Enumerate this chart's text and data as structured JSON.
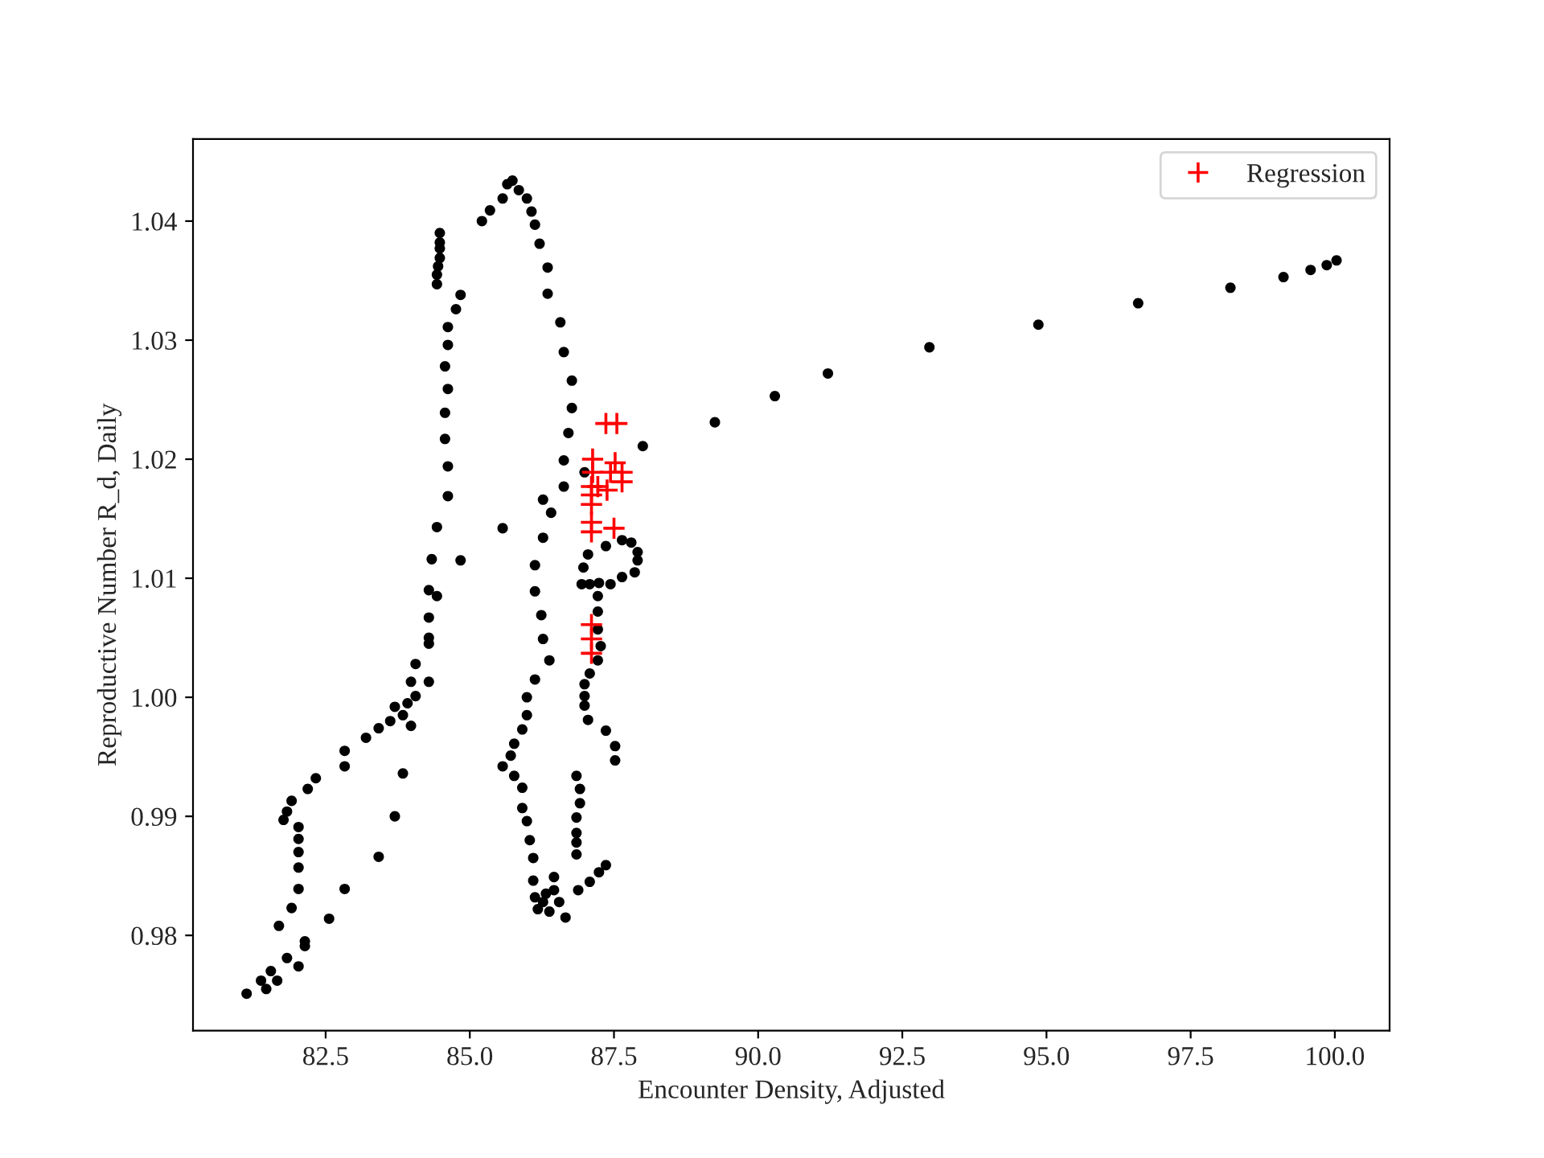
{
  "chart_data": {
    "type": "scatter",
    "xlabel": "Encounter Density, Adjusted",
    "ylabel": "Reproductive Number R_d, Daily",
    "xlim": [
      80.2,
      100.95
    ],
    "ylim": [
      0.972,
      1.0469
    ],
    "xticks": [
      82.5,
      {
        "value": 85,
        "label": "85.0"
      },
      87.5,
      {
        "value": 90,
        "label": "90.0"
      },
      92.5,
      {
        "value": 95,
        "label": "95.0"
      },
      97.5,
      {
        "value": 100,
        "label": "100.0"
      }
    ],
    "yticks": [
      0.98,
      0.99,
      {
        "value": 1.0,
        "label": "1.00"
      },
      1.01,
      1.02,
      1.03,
      1.04
    ],
    "grid": false,
    "legend": "top right",
    "series": [
      {
        "color": "#000000",
        "marker": "circle",
        "x": [
          84.48,
          84.48,
          84.48,
          84.48,
          84.45,
          84.43,
          84.43,
          84.84,
          84.76,
          84.62,
          84.62,
          84.57,
          84.62,
          84.57,
          84.57,
          84.62,
          84.62,
          84.43,
          84.34,
          84.84,
          84.29,
          84.43,
          84.29,
          84.29,
          84.29,
          84.06,
          83.98,
          84.29,
          84.06,
          83.92,
          83.7,
          83.84,
          83.62,
          83.98,
          83.42,
          83.2,
          82.83,
          82.83,
          83.84,
          82.33,
          82.19,
          81.91,
          81.83,
          81.77,
          82.03,
          82.03,
          82.03,
          83.7,
          82.03,
          83.42,
          82.83,
          82.03,
          81.91,
          82.56,
          81.69,
          82.14,
          82.14,
          81.83,
          82.03,
          81.55,
          81.38,
          81.66,
          81.47,
          81.13,
          85.21,
          85.35,
          85.57,
          85.65,
          85.74,
          85.85,
          85.99,
          86.07,
          86.13,
          86.21,
          86.35,
          86.35,
          86.57,
          86.63,
          86.77,
          86.77,
          86.71,
          86.63,
          86.63,
          86.27,
          86.41,
          85.57,
          86.27,
          86.13,
          86.13,
          86.24,
          86.27,
          86.38,
          86.13,
          85.99,
          85.99,
          85.91,
          85.77,
          85.71,
          85.57,
          85.77,
          85.91,
          85.91,
          85.99,
          86.04,
          86.1,
          86.1,
          86.13,
          86.18,
          86.46,
          86.46,
          86.55,
          86.66,
          86.88,
          87.08,
          87.24,
          87.36,
          86.85,
          86.91,
          86.91,
          86.85,
          86.85,
          86.85,
          86.85,
          86.32,
          86.27,
          86.38,
          86.99,
          88.0,
          87.36,
          87.64,
          87.8,
          87.91,
          87.91,
          87.86,
          87.64,
          87.44,
          87.24,
          87.08,
          86.94,
          87.05,
          86.97,
          87.22,
          87.22,
          87.22,
          87.27,
          87.22,
          87.08,
          86.99,
          86.99,
          86.99,
          87.05,
          87.36,
          87.52,
          87.52,
          89.25,
          90.29,
          91.21,
          92.97,
          94.86,
          96.59,
          98.19,
          99.11,
          99.58,
          99.86,
          100.03
        ],
        "values": [
          1.039,
          1.0382,
          1.0377,
          1.0369,
          1.0362,
          1.0355,
          1.0347,
          1.0338,
          1.0326,
          1.0311,
          1.0296,
          1.0278,
          1.0259,
          1.0239,
          1.0217,
          1.0194,
          1.0169,
          1.0143,
          1.0116,
          1.0115,
          1.009,
          1.0085,
          1.0067,
          1.005,
          1.0045,
          1.0028,
          1.0013,
          1.0013,
          1.0001,
          0.9995,
          0.9992,
          0.9985,
          0.998,
          0.9976,
          0.9974,
          0.9966,
          0.9955,
          0.9942,
          0.9936,
          0.9932,
          0.9923,
          0.9913,
          0.9904,
          0.9897,
          0.9891,
          0.9881,
          0.987,
          0.99,
          0.9857,
          0.9866,
          0.9839,
          0.9839,
          0.9823,
          0.9814,
          0.9808,
          0.9795,
          0.9791,
          0.9781,
          0.9774,
          0.977,
          0.9762,
          0.9762,
          0.9755,
          0.9751,
          1.04,
          1.0409,
          1.0419,
          1.0431,
          1.0434,
          1.0426,
          1.0419,
          1.0408,
          1.0397,
          1.0381,
          1.0361,
          1.0339,
          1.0315,
          1.029,
          1.0266,
          1.0243,
          1.0222,
          1.0199,
          1.0177,
          1.0166,
          1.0155,
          1.0142,
          1.0134,
          1.0111,
          1.0089,
          1.0069,
          1.0049,
          1.0031,
          1.0015,
          1.0,
          0.9985,
          0.9973,
          0.9961,
          0.9951,
          0.9942,
          0.9934,
          0.9924,
          0.9907,
          0.9896,
          0.988,
          0.9865,
          0.9846,
          0.9832,
          0.9822,
          0.9849,
          0.9838,
          0.9828,
          0.9815,
          0.9838,
          0.9845,
          0.9853,
          0.9859,
          0.9934,
          0.9923,
          0.9911,
          0.9899,
          0.9886,
          0.9878,
          0.9868,
          0.9835,
          0.9828,
          0.982,
          1.0189,
          1.0211,
          1.0127,
          1.0132,
          1.013,
          1.0122,
          1.0115,
          1.0105,
          1.0101,
          1.0095,
          1.0096,
          1.0095,
          1.0095,
          1.012,
          1.0109,
          1.0085,
          1.0072,
          1.0057,
          1.0043,
          1.0031,
          1.002,
          1.0011,
          1.0001,
          0.9993,
          0.9981,
          0.9972,
          0.9959,
          0.9947,
          1.0231,
          1.0253,
          1.0272,
          1.0294,
          1.0313,
          1.0331,
          1.0344,
          1.0353,
          1.0359,
          1.0363,
          1.0367
        ]
      },
      {
        "name": "Regression",
        "color": "#ff0000",
        "marker": "cross",
        "x": [
          87.36,
          87.55,
          87.13,
          87.52,
          87.64,
          87.44,
          87.64,
          87.13,
          87.11,
          87.22,
          87.38,
          87.11,
          87.11,
          87.11,
          87.11,
          87.5,
          87.11,
          87.11,
          87.11
        ],
        "values": [
          1.023,
          1.023,
          1.02,
          1.0197,
          1.0189,
          1.0189,
          1.0181,
          1.0189,
          1.0177,
          1.0177,
          1.0174,
          1.017,
          1.0162,
          1.0147,
          1.0139,
          1.0142,
          1.0061,
          1.0049,
          1.0037
        ]
      }
    ]
  }
}
